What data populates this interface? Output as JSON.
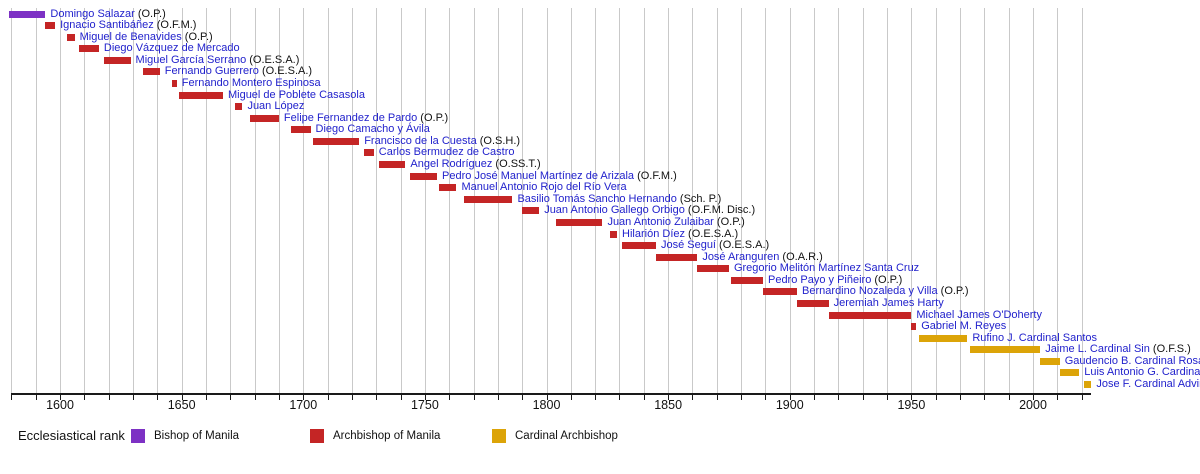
{
  "chart_data": {
    "type": "timeline",
    "title": "",
    "axis": {
      "start_year": 1579,
      "end_year": 2024,
      "grid_interval_years": 10,
      "label_interval_years": 50,
      "tick_labels": [
        "1600",
        "1650",
        "1700",
        "1750",
        "1800",
        "1850",
        "1900",
        "1950",
        "2000"
      ]
    },
    "legend": {
      "title": "Ecclesiastical rank",
      "items": [
        {
          "label": "Bishop of Manila",
          "rank": "bishop",
          "color": "#7d31c4"
        },
        {
          "label": "Archbishop of Manila",
          "rank": "archbishop",
          "color": "#c42525"
        },
        {
          "label": "Cardinal Archbishop",
          "rank": "cardinal",
          "color": "#dca408"
        }
      ]
    },
    "people": [
      {
        "name": "Domingo Salazar",
        "suffix": "(O.P.)",
        "start": 1579,
        "end": 1594,
        "rank": "bishop"
      },
      {
        "name": "Ignacio Santibáñez",
        "suffix": "(O.F.M.)",
        "start": 1594,
        "end": 1598,
        "rank": "archbishop"
      },
      {
        "name": "Miguel de Benavides",
        "suffix": "(O.P.)",
        "start": 1603,
        "end": 1606,
        "rank": "archbishop"
      },
      {
        "name": "Diego Vázquez de Mercado",
        "suffix": "",
        "start": 1608,
        "end": 1616,
        "rank": "archbishop"
      },
      {
        "name": "Miguel García Serrano",
        "suffix": "(O.E.S.A.)",
        "start": 1618,
        "end": 1629,
        "rank": "archbishop"
      },
      {
        "name": "Fernando Guerrero",
        "suffix": "(O.E.S.A.)",
        "start": 1634,
        "end": 1641,
        "rank": "archbishop"
      },
      {
        "name": "Fernando Montero Espinosa",
        "suffix": "",
        "start": 1646,
        "end": 1648,
        "rank": "archbishop"
      },
      {
        "name": "Miguel de Poblete Casasola",
        "suffix": "",
        "start": 1649,
        "end": 1667,
        "rank": "archbishop"
      },
      {
        "name": "Juan López",
        "suffix": "",
        "start": 1672,
        "end": 1675,
        "rank": "archbishop"
      },
      {
        "name": "Felipe Fernandez de Pardo",
        "suffix": "(O.P.)",
        "start": 1678,
        "end": 1690,
        "rank": "archbishop"
      },
      {
        "name": "Diego Camacho y Ávila",
        "suffix": "",
        "start": 1695,
        "end": 1703,
        "rank": "archbishop"
      },
      {
        "name": "Francisco de la Cuesta",
        "suffix": "(O.S.H.)",
        "start": 1704,
        "end": 1723,
        "rank": "archbishop"
      },
      {
        "name": "Carlos Bermudez de Castro",
        "suffix": "",
        "start": 1725,
        "end": 1729,
        "rank": "archbishop"
      },
      {
        "name": "Angel Rodríguez",
        "suffix": "(O.SS.T.)",
        "start": 1731,
        "end": 1742,
        "rank": "archbishop"
      },
      {
        "name": "Pedro José Manuel Martínez de Arizala",
        "suffix": "(O.F.M.)",
        "start": 1744,
        "end": 1755,
        "rank": "archbishop"
      },
      {
        "name": "Manuel Antonio Rojo del Río Vera",
        "suffix": "",
        "start": 1756,
        "end": 1763,
        "rank": "archbishop"
      },
      {
        "name": "Basilio Tomás Sancho Hernando",
        "suffix": "(Sch. P.)",
        "start": 1766,
        "end": 1786,
        "rank": "archbishop"
      },
      {
        "name": "Juan Antonio Gallego Orbigo",
        "suffix": "(O.F.M. Disc.)",
        "start": 1790,
        "end": 1797,
        "rank": "archbishop"
      },
      {
        "name": "Juan Antonio Zulaibar",
        "suffix": "(O.P.)",
        "start": 1804,
        "end": 1823,
        "rank": "archbishop"
      },
      {
        "name": "Hilarión Díez",
        "suffix": "(O.E.S.A.)",
        "start": 1826,
        "end": 1829,
        "rank": "archbishop"
      },
      {
        "name": "José Seguí",
        "suffix": "(O.E.S.A.)",
        "start": 1831,
        "end": 1845,
        "rank": "archbishop"
      },
      {
        "name": "José Aranguren",
        "suffix": "(O.A.R.)",
        "start": 1845,
        "end": 1862,
        "rank": "archbishop"
      },
      {
        "name": "Gregorio Melitón Martínez Santa Cruz",
        "suffix": "",
        "start": 1862,
        "end": 1875,
        "rank": "archbishop"
      },
      {
        "name": "Pedro Payo y Piñeiro",
        "suffix": "(O.P.)",
        "start": 1876,
        "end": 1889,
        "rank": "archbishop"
      },
      {
        "name": "Bernardino Nozaleda y Villa",
        "suffix": "(O.P.)",
        "start": 1889,
        "end": 1903,
        "rank": "archbishop"
      },
      {
        "name": "Jeremiah James Harty",
        "suffix": "",
        "start": 1903,
        "end": 1916,
        "rank": "archbishop"
      },
      {
        "name": "Michael James O'Doherty",
        "suffix": "",
        "start": 1916,
        "end": 1950,
        "rank": "archbishop"
      },
      {
        "name": "Gabriel M. Reyes",
        "suffix": "",
        "start": 1950,
        "end": 1952,
        "rank": "archbishop"
      },
      {
        "name": "Rufino J. Cardinal Santos",
        "suffix": "",
        "start": 1953,
        "end": 1973,
        "rank": "cardinal"
      },
      {
        "name": "Jaime L. Cardinal Sin",
        "suffix": "(O.F.S.)",
        "start": 1974,
        "end": 2003,
        "rank": "cardinal"
      },
      {
        "name": "Gaudencio B. Cardinal Rosales",
        "suffix": "",
        "start": 2003,
        "end": 2011,
        "rank": "cardinal"
      },
      {
        "name": "Luis Antonio G. Cardinal Tagle",
        "suffix": "",
        "start": 2011,
        "end": 2019,
        "rank": "cardinal"
      },
      {
        "name": "Jose F. Cardinal Advincula",
        "suffix": "",
        "start": 2021,
        "end": 2024,
        "rank": "cardinal"
      }
    ]
  }
}
